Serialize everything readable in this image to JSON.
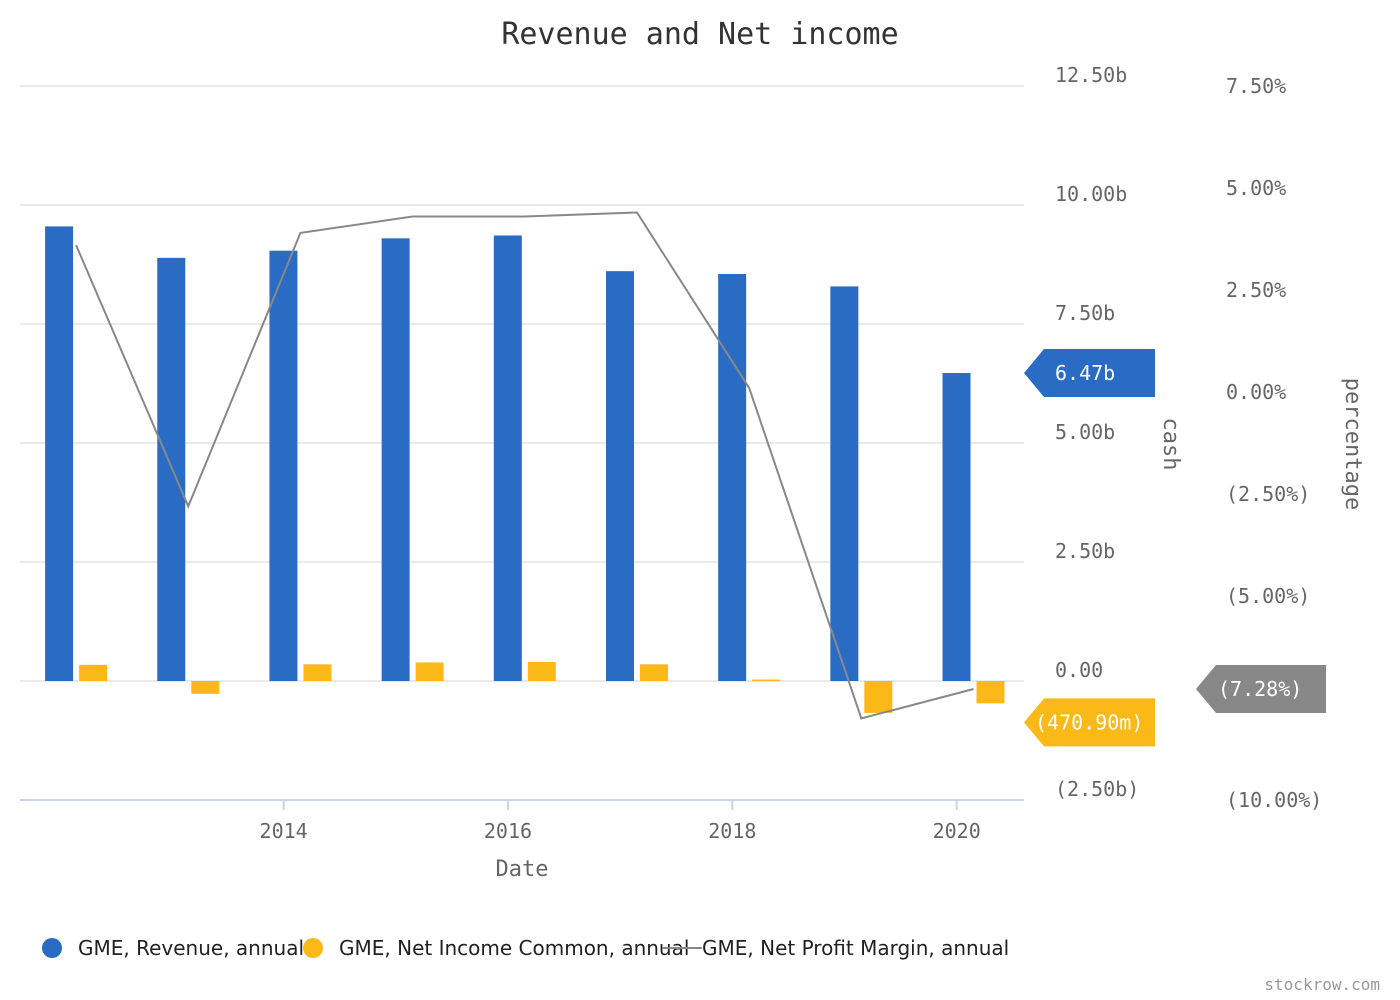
{
  "chart_data": {
    "type": "bar",
    "title": "Revenue and Net income",
    "xlabel": "Date",
    "y_left_label": "cash",
    "y_right_label": "percentage",
    "x": [
      2012.15,
      2013.15,
      2014.15,
      2015.15,
      2016.15,
      2017.15,
      2018.15,
      2019.15,
      2020.15
    ],
    "x_range": [
      2011.65,
      2020.6
    ],
    "x_ticks": [
      2014,
      2016,
      2018,
      2020
    ],
    "x_tick_labels": [
      "2014",
      "2016",
      "2018",
      "2020"
    ],
    "y_left_range": [
      -2.5,
      12.5
    ],
    "y_left_ticks": [
      -2.5,
      0,
      2.5,
      5,
      7.5,
      10,
      12.5
    ],
    "y_left_tick_labels": [
      "(2.50b)",
      "0.00",
      "2.50b",
      "5.00b",
      "7.50b",
      "10.00b",
      "12.50b"
    ],
    "y_right_range": [
      -10,
      7.5
    ],
    "y_right_ticks": [
      -10,
      -7.5,
      -5,
      -2.5,
      0,
      2.5,
      5,
      7.5
    ],
    "y_right_tick_labels": [
      "(10.00%)",
      "",
      "(5.00%)",
      "(2.50%)",
      "0.00%",
      "2.50%",
      "5.00%",
      "7.50%"
    ],
    "grid": true,
    "legend_position": "bottom-left",
    "series": [
      {
        "name": "GME, Revenue, annual",
        "type": "bar",
        "axis": "left",
        "color": "#2a6cc3",
        "values": [
          9.55,
          8.89,
          9.04,
          9.3,
          9.36,
          8.61,
          8.55,
          8.29,
          6.47
        ]
      },
      {
        "name": "GME, Net Income Common, annual",
        "type": "bar",
        "axis": "left",
        "color": "#fbb917",
        "values": [
          0.34,
          -0.27,
          0.35,
          0.39,
          0.4,
          0.35,
          0.03,
          -0.67,
          -0.47
        ]
      },
      {
        "name": "GME, Net Profit Margin, annual",
        "type": "line",
        "axis": "right",
        "color": "#888888",
        "values": [
          3.6,
          -2.8,
          3.9,
          4.3,
          4.3,
          4.4,
          0.1,
          -8.0,
          -7.28
        ]
      }
    ],
    "last_value_labels": {
      "revenue": "6.47b",
      "net_income": "(470.90m)",
      "margin": "(7.28%)"
    },
    "credit": "stockrow.com"
  }
}
